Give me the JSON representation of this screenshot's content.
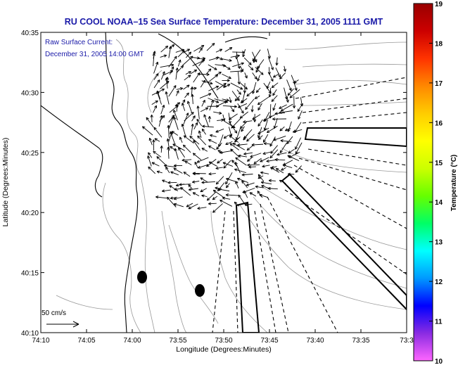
{
  "chart_data": {
    "type": "map",
    "title": "RU COOL   NOAA–15  Sea Surface Temperature:  December 31, 2005 1111 GMT",
    "subtitle_line1": "Raw Surface Current:",
    "subtitle_line2": "December 31, 2005 14:00 GMT",
    "xlabel": "Longitude (Degrees:Minutes)",
    "ylabel": "Latitude (Degrees:Minutes)",
    "x_ticks": [
      "74:10",
      "74:05",
      "74:00",
      "73:55",
      "73:50",
      "73:45",
      "73:40",
      "73:35",
      "73:3"
    ],
    "y_ticks": [
      "40:35",
      "40:30",
      "40:25",
      "40:20",
      "40:15",
      "40:10"
    ],
    "x_range_minutes_west": [
      10,
      30
    ],
    "y_range_minutes_north": [
      10,
      35
    ],
    "scale_label": "50 cm/s",
    "colorbar": {
      "label": "Temperature (°C)",
      "min": 10,
      "max": 19,
      "ticks": [
        10,
        11,
        12,
        13,
        14,
        15,
        16,
        17,
        18,
        19
      ],
      "colors": [
        "#ff66ff",
        "#8a2be2",
        "#0000ff",
        "#0099ff",
        "#00ffff",
        "#00ff66",
        "#66ff00",
        "#ccff00",
        "#ffff00",
        "#ffcc00",
        "#ff8800",
        "#ff3300",
        "#cc0000",
        "#990000"
      ]
    }
  }
}
